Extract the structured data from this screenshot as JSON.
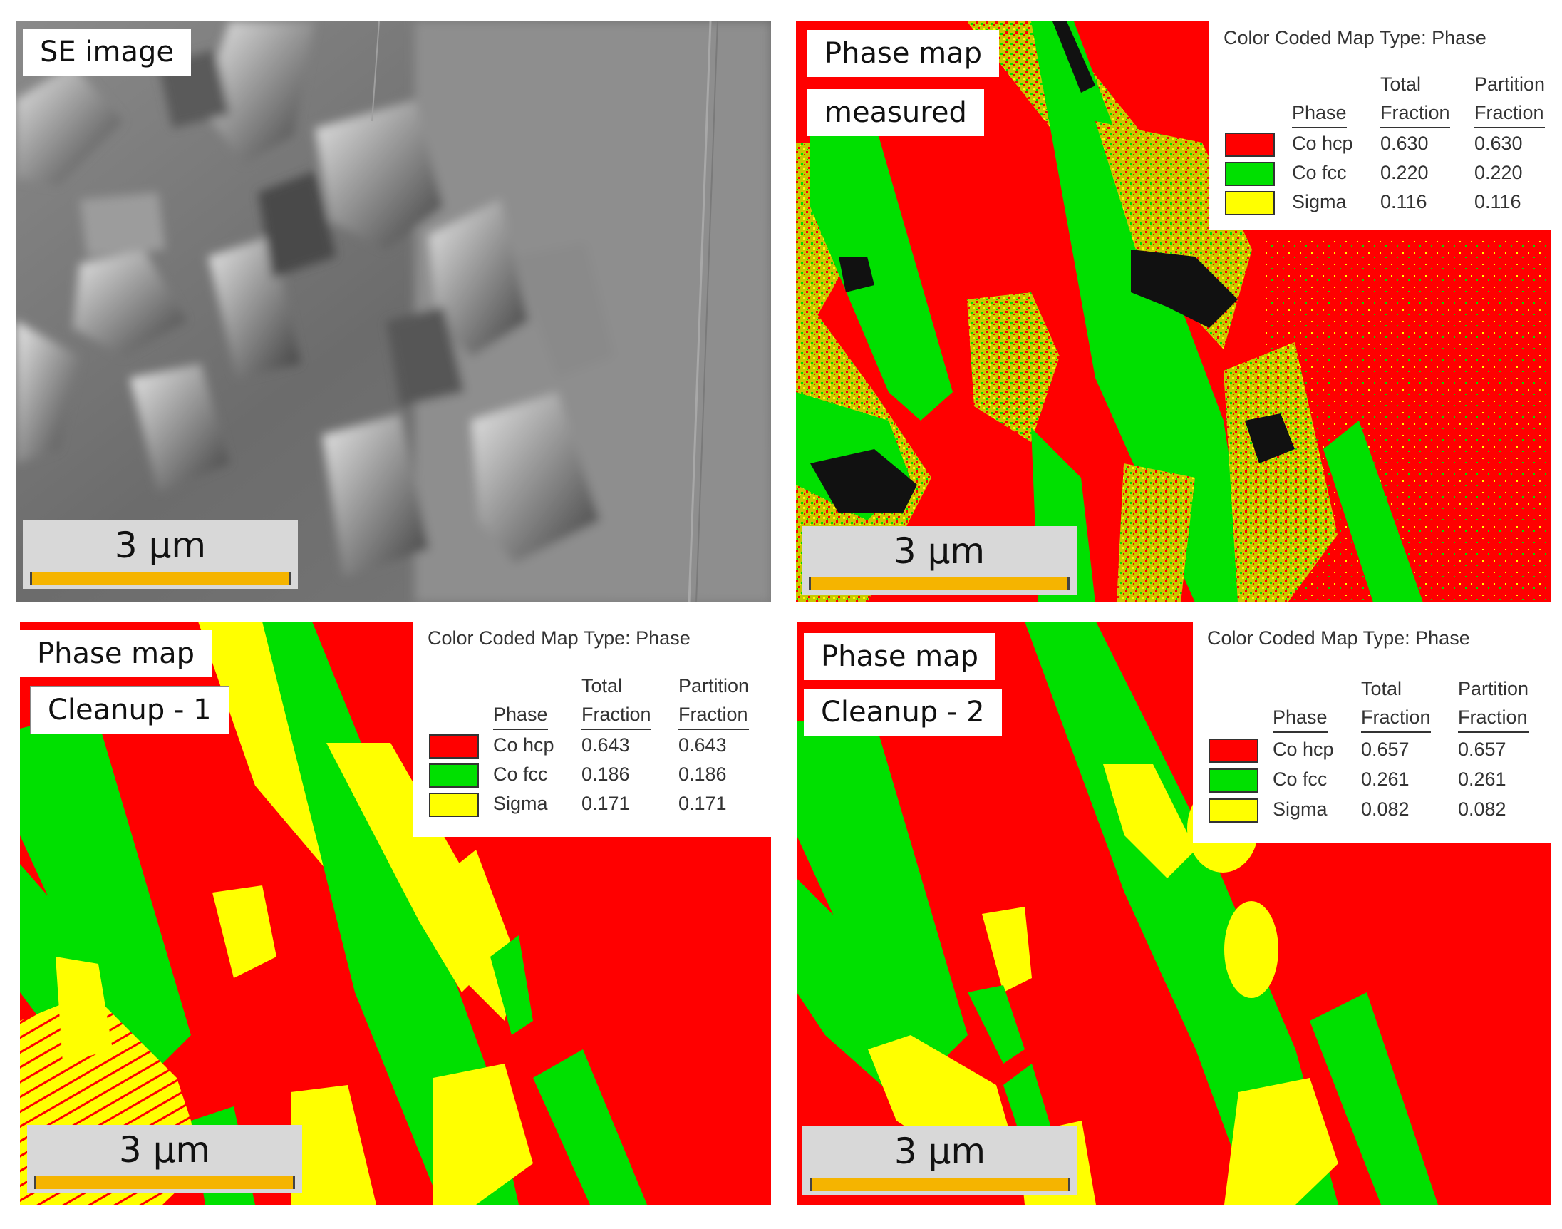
{
  "panels": {
    "se": {
      "label": "SE image",
      "scale": "3 µm"
    },
    "measured": {
      "label1": "Phase map",
      "label2": "measured",
      "scale": "3 µm",
      "legend": {
        "title": "Color Coded Map Type: Phase",
        "hdr_phase": "Phase",
        "hdr_total_1": "Total",
        "hdr_total_2": "Fraction",
        "hdr_part_1": "Partition",
        "hdr_part_2": "Fraction",
        "rows": [
          {
            "phase": "Co hcp",
            "total": "0.630",
            "partition": "0.630",
            "color": "#ff0000"
          },
          {
            "phase": "Co fcc",
            "total": "0.220",
            "partition": "0.220",
            "color": "#00e000"
          },
          {
            "phase": "Sigma",
            "total": "0.116",
            "partition": "0.116",
            "color": "#ffff00"
          }
        ]
      }
    },
    "cleanup1": {
      "label1": "Phase map",
      "label2": "Cleanup - 1",
      "scale": "3 µm",
      "legend": {
        "title": "Color Coded Map Type: Phase",
        "hdr_phase": "Phase",
        "hdr_total_1": "Total",
        "hdr_total_2": "Fraction",
        "hdr_part_1": "Partition",
        "hdr_part_2": "Fraction",
        "rows": [
          {
            "phase": "Co hcp",
            "total": "0.643",
            "partition": "0.643",
            "color": "#ff0000"
          },
          {
            "phase": "Co fcc",
            "total": "0.186",
            "partition": "0.186",
            "color": "#00e000"
          },
          {
            "phase": "Sigma",
            "total": "0.171",
            "partition": "0.171",
            "color": "#ffff00"
          }
        ]
      }
    },
    "cleanup2": {
      "label1": "Phase map",
      "label2": "Cleanup - 2",
      "scale": "3 µm",
      "legend": {
        "title": "Color Coded Map Type: Phase",
        "hdr_phase": "Phase",
        "hdr_total_1": "Total",
        "hdr_total_2": "Fraction",
        "hdr_part_1": "Partition",
        "hdr_part_2": "Fraction",
        "rows": [
          {
            "phase": "Co hcp",
            "total": "0.657",
            "partition": "0.657",
            "color": "#ff0000"
          },
          {
            "phase": "Co fcc",
            "total": "0.261",
            "partition": "0.261",
            "color": "#00e000"
          },
          {
            "phase": "Sigma",
            "total": "0.082",
            "partition": "0.082",
            "color": "#ffff00"
          }
        ]
      }
    }
  },
  "colors": {
    "co_hcp": "#ff0000",
    "co_fcc": "#00e000",
    "sigma": "#ffff00",
    "scalebar_fill": "#f5b400"
  }
}
